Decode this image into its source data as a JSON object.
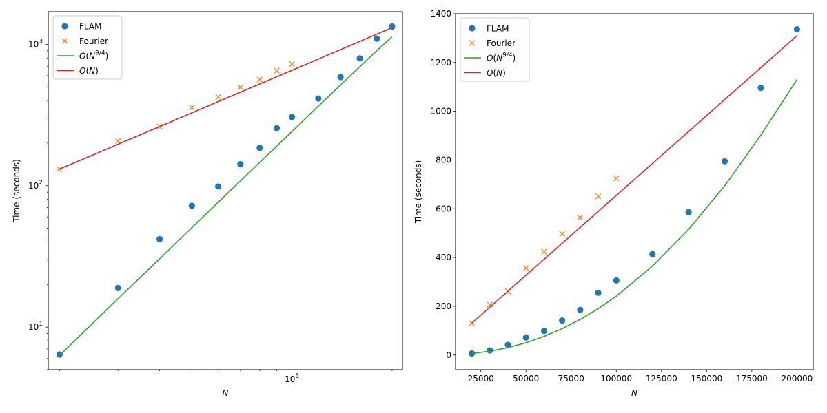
{
  "chart_data": [
    {
      "type": "scatter",
      "scale": "log",
      "xlabel": "N",
      "ylabel": "Time (seconds)",
      "xlim": [
        18500,
        215000
      ],
      "ylim": [
        5.0,
        1700
      ],
      "x_ticks_major": [
        100000
      ],
      "x_tick_labels": [
        "10^5"
      ],
      "y_ticks_major": [
        10,
        100,
        1000
      ],
      "y_tick_labels": [
        "10^1",
        "10^2",
        "10^3"
      ],
      "legend_position": "top-left",
      "legend": [
        "FLAM",
        "Fourier",
        "O(N^{9/4})",
        "O(N)"
      ],
      "series": [
        {
          "name": "FLAM",
          "kind": "marker-circle",
          "color": "#1f77b4",
          "x": [
            20000,
            30000,
            40000,
            50000,
            60000,
            70000,
            80000,
            90000,
            100000,
            120000,
            140000,
            160000,
            180000,
            200000
          ],
          "y": [
            6.4,
            18.9,
            41.9,
            72.1,
            98.7,
            141.7,
            185.0,
            255.3,
            306.0,
            413.8,
            586.1,
            794.9,
            1096.1,
            1336.2
          ]
        },
        {
          "name": "Fourier",
          "kind": "marker-x",
          "color": "#ff7f0e",
          "x": [
            20000,
            30000,
            40000,
            50000,
            60000,
            70000,
            80000,
            90000,
            100000
          ],
          "y": [
            131.0,
            207.0,
            262.0,
            357.0,
            424.0,
            497.0,
            564.0,
            651.0,
            725.0
          ]
        },
        {
          "name": "O(N^{9/4})",
          "kind": "line",
          "color": "#2ca02c",
          "x": [
            20000,
            30000,
            40000,
            50000,
            60000,
            70000,
            80000,
            90000,
            100000,
            120000,
            140000,
            160000,
            180000,
            200000
          ],
          "y": [
            6.3,
            15.9,
            30.4,
            50.5,
            76.3,
            108.2,
            146.1,
            190.5,
            241.4,
            364.8,
            515.5,
            694.3,
            902.0,
            1130.0
          ]
        },
        {
          "name": "O(N)",
          "kind": "line",
          "color": "#d62728",
          "x": [
            20000,
            30000,
            40000,
            50000,
            60000,
            70000,
            80000,
            90000,
            100000,
            120000,
            140000,
            160000,
            180000,
            200000
          ],
          "y": [
            131.0,
            196.5,
            262.0,
            327.5,
            393.0,
            458.5,
            524.0,
            589.5,
            655.0,
            786.0,
            917.0,
            1048.0,
            1179.0,
            1310.0
          ]
        }
      ]
    },
    {
      "type": "scatter",
      "scale": "linear",
      "xlabel": "N",
      "ylabel": "Time (seconds)",
      "xlim": [
        11000,
        209000
      ],
      "ylim": [
        -60,
        1400
      ],
      "x_ticks": [
        25000,
        50000,
        75000,
        100000,
        125000,
        150000,
        175000,
        200000
      ],
      "x_tick_labels": [
        "25000",
        "50000",
        "75000",
        "100000",
        "125000",
        "150000",
        "175000",
        "200000"
      ],
      "y_ticks": [
        0,
        200,
        400,
        600,
        800,
        1000,
        1200,
        1400
      ],
      "y_tick_labels": [
        "0",
        "200",
        "400",
        "600",
        "800",
        "1000",
        "1200",
        "1400"
      ],
      "legend_position": "top-left",
      "legend": [
        "FLAM",
        "Fourier",
        "O(N^{9/4})",
        "O(N)"
      ],
      "series": [
        {
          "name": "FLAM",
          "kind": "marker-circle",
          "color": "#1f77b4",
          "x": [
            20000,
            30000,
            40000,
            50000,
            60000,
            70000,
            80000,
            90000,
            100000,
            120000,
            140000,
            160000,
            180000,
            200000
          ],
          "y": [
            6.4,
            18.9,
            41.9,
            72.1,
            98.7,
            141.7,
            185.0,
            255.3,
            306.0,
            413.8,
            586.1,
            794.9,
            1096.1,
            1336.2
          ]
        },
        {
          "name": "Fourier",
          "kind": "marker-x",
          "color": "#ff7f0e",
          "x": [
            20000,
            30000,
            40000,
            50000,
            60000,
            70000,
            80000,
            90000,
            100000
          ],
          "y": [
            131.0,
            207.0,
            262.0,
            357.0,
            424.0,
            497.0,
            564.0,
            651.0,
            725.0
          ]
        },
        {
          "name": "O(N^{9/4})",
          "kind": "line",
          "color": "#2ca02c",
          "x": [
            20000,
            30000,
            40000,
            50000,
            60000,
            70000,
            80000,
            90000,
            100000,
            120000,
            140000,
            160000,
            180000,
            200000
          ],
          "y": [
            6.3,
            15.9,
            30.4,
            50.5,
            76.3,
            108.2,
            146.1,
            190.5,
            241.4,
            364.8,
            515.5,
            694.3,
            902.0,
            1130.0
          ]
        },
        {
          "name": "O(N)",
          "kind": "line",
          "color": "#d62728",
          "x": [
            20000,
            30000,
            40000,
            50000,
            60000,
            70000,
            80000,
            90000,
            100000,
            120000,
            140000,
            160000,
            180000,
            200000
          ],
          "y": [
            131.0,
            196.5,
            262.0,
            327.5,
            393.0,
            458.5,
            524.0,
            589.5,
            655.0,
            786.0,
            917.0,
            1048.0,
            1179.0,
            1310.0
          ]
        }
      ]
    }
  ]
}
